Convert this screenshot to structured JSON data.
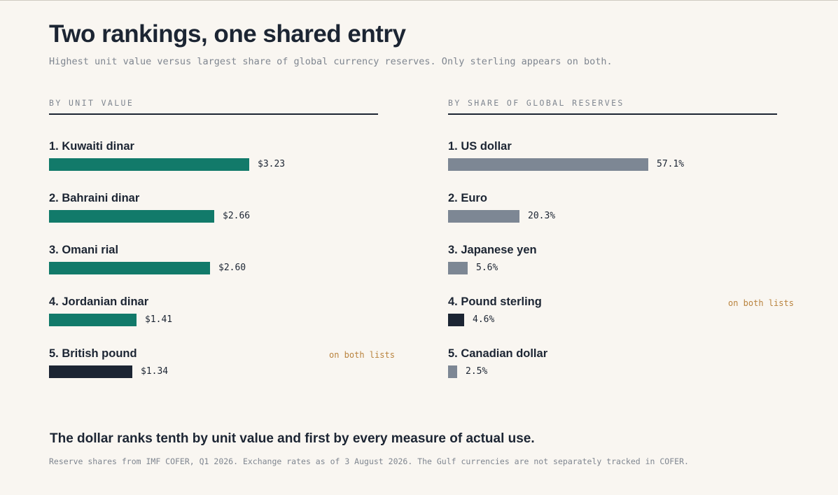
{
  "title": "Two rankings, one shared entry",
  "subtitle": "Highest unit value versus largest share of global currency reserves. Only sterling appears on both.",
  "colors": {
    "unit_bar": "#127a6a",
    "reserve_bar": "#7d8794",
    "shared_bar": "#1c2533",
    "flag": "#b9833e"
  },
  "chart_data": [
    {
      "type": "bar",
      "orientation": "horizontal",
      "title": "BY UNIT VALUE",
      "categories": [
        "1. Kuwaiti dinar",
        "2. Bahraini dinar",
        "3. Omani rial",
        "4. Jordanian dinar",
        "5. British pound"
      ],
      "values": [
        3.23,
        2.66,
        2.6,
        1.41,
        1.34
      ],
      "value_labels": [
        "$3.23",
        "$2.66",
        "$2.60",
        "$1.41",
        "$1.34"
      ],
      "highlight": [
        false,
        false,
        false,
        false,
        true
      ],
      "highlight_label": "on both lists",
      "xlim": [
        0,
        3.23
      ],
      "grid": false
    },
    {
      "type": "bar",
      "orientation": "horizontal",
      "title": "BY SHARE OF GLOBAL RESERVES",
      "categories": [
        "1. US dollar",
        "2. Euro",
        "3. Japanese yen",
        "4. Pound sterling",
        "5. Canadian dollar"
      ],
      "values": [
        57.1,
        20.3,
        5.6,
        4.6,
        2.5
      ],
      "value_labels": [
        "57.1%",
        "20.3%",
        "5.6%",
        "4.6%",
        "2.5%"
      ],
      "highlight": [
        false,
        false,
        false,
        true,
        false
      ],
      "highlight_label": "on both lists",
      "xlim": [
        0,
        57.1
      ],
      "grid": false
    }
  ],
  "takeaway": "The dollar ranks tenth by unit value and first by every measure of actual use.",
  "source": "Reserve shares from IMF COFER, Q1 2026. Exchange rates as of 3 August 2026. The Gulf currencies are not separately tracked in COFER."
}
